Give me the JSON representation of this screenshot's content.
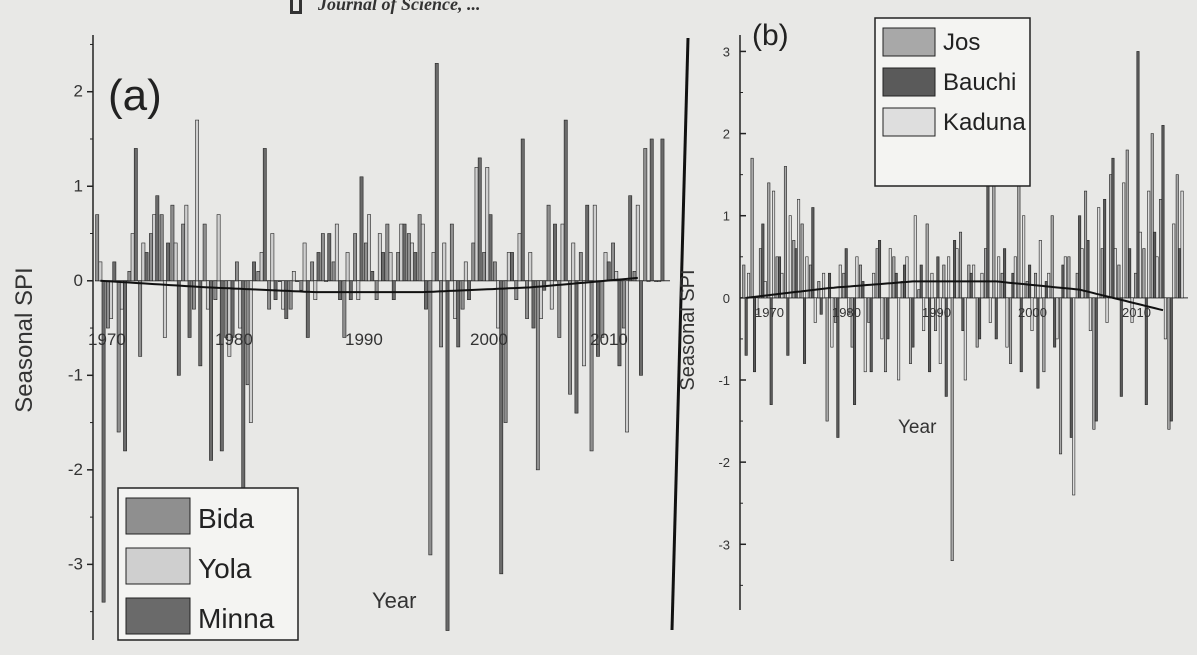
{
  "header": {
    "text": "Journal of Science, ..."
  },
  "chart_data": [
    {
      "type": "bar",
      "title": "",
      "panel_label": "(a)",
      "xlabel": "Year",
      "ylabel": "Seasonal SPI",
      "ylim": [
        -3.8,
        2.6
      ],
      "xlim": [
        1969.5,
        2023
      ],
      "yticks": [
        -3,
        -2,
        -1,
        0,
        1,
        2
      ],
      "xticks": [
        1970,
        1980,
        1990,
        2000,
        2010
      ],
      "xtick_labels": [
        "1970",
        "1980",
        "1990",
        "2000",
        "2010"
      ],
      "legend": {
        "position": "bottom-left",
        "entries": [
          "Bida",
          "Yola",
          "Minna"
        ]
      },
      "trend_line": {
        "x": [
          1970,
          1980,
          1990,
          2000,
          2010,
          2020
        ],
        "y": [
          0.0,
          -0.07,
          -0.12,
          -0.12,
          -0.07,
          0.03
        ]
      },
      "series": [
        {
          "name": "Bida",
          "color": "#8f8f8f",
          "x": [
            1970,
            1971,
            1972,
            1973,
            1974,
            1975,
            1976,
            1977,
            1978,
            1979,
            1980,
            1981,
            1982,
            1983,
            1984,
            1985,
            1986,
            1987,
            1988,
            1989,
            1990,
            1991,
            1992,
            1993,
            1994,
            1995,
            1996,
            1997,
            1998,
            1999,
            2000,
            2001,
            2002,
            2003,
            2004,
            2005,
            2006,
            2007,
            2008,
            2009,
            2010,
            2011,
            2012,
            2013,
            2014,
            2015,
            2016,
            2017,
            2018,
            2019,
            2020,
            2021,
            2022
          ],
          "values": [
            0.7,
            -0.5,
            -1.6,
            0.1,
            -0.8,
            0.5,
            0.7,
            0.8,
            0.6,
            -0.3,
            0.6,
            -0.2,
            -0.6,
            0.2,
            -1.1,
            0.1,
            -0.3,
            0.0,
            -0.3,
            -0.1,
            0.2,
            0.5,
            0.2,
            -0.6,
            0.5,
            0.4,
            -0.2,
            0.6,
            0.3,
            0.5,
            0.7,
            -2.9,
            -0.7,
            0.6,
            -0.3,
            0.4,
            0.3,
            0.2,
            -1.5,
            -0.2,
            -0.4,
            -2.0,
            0.8,
            -0.6,
            -1.2,
            0.3,
            -1.8,
            -0.6,
            0.4,
            -0.5,
            0.1,
            1.4,
            0.0
          ]
        },
        {
          "name": "Yola",
          "color": "#cfcfcf",
          "x": [
            1970,
            1971,
            1972,
            1973,
            1974,
            1975,
            1976,
            1977,
            1978,
            1979,
            1980,
            1981,
            1982,
            1983,
            1984,
            1985,
            1986,
            1987,
            1988,
            1989,
            1990,
            1991,
            1992,
            1993,
            1994,
            1995,
            1996,
            1997,
            1998,
            1999,
            2000,
            2001,
            2002,
            2003,
            2004,
            2005,
            2006,
            2007,
            2008,
            2009,
            2010,
            2011,
            2012,
            2013,
            2014,
            2015,
            2016,
            2017,
            2018,
            2019,
            2020,
            2021,
            2022
          ],
          "values": [
            0.2,
            -0.4,
            -0.3,
            0.5,
            0.4,
            0.7,
            -0.6,
            0.4,
            0.8,
            1.7,
            -0.3,
            0.7,
            -0.8,
            -0.5,
            -1.5,
            0.3,
            0.5,
            -0.3,
            0.1,
            0.4,
            -0.2,
            0.0,
            0.6,
            0.3,
            -0.2,
            0.7,
            0.5,
            0.3,
            0.6,
            0.4,
            0.6,
            0.3,
            0.4,
            -0.4,
            0.2,
            1.2,
            1.2,
            -0.5,
            0.3,
            0.5,
            0.3,
            -0.4,
            -0.3,
            0.6,
            0.4,
            -0.9,
            0.8,
            0.3,
            0.1,
            -1.6,
            0.8,
            0.0,
            0.0
          ]
        },
        {
          "name": "Minna",
          "color": "#6a6a6a",
          "x": [
            1970,
            1971,
            1972,
            1973,
            1974,
            1975,
            1976,
            1977,
            1978,
            1979,
            1980,
            1981,
            1982,
            1983,
            1984,
            1985,
            1986,
            1987,
            1988,
            1989,
            1990,
            1991,
            1992,
            1993,
            1994,
            1995,
            1996,
            1997,
            1998,
            1999,
            2000,
            2001,
            2002,
            2003,
            2004,
            2005,
            2006,
            2007,
            2008,
            2009,
            2010,
            2011,
            2012,
            2013,
            2014,
            2015,
            2016,
            2017,
            2018,
            2019,
            2020,
            2021,
            2022
          ],
          "values": [
            -3.4,
            0.2,
            -1.8,
            1.4,
            0.3,
            0.9,
            0.4,
            -1.0,
            -0.6,
            -0.9,
            -1.9,
            -1.8,
            -0.6,
            -3.5,
            0.2,
            1.4,
            -0.2,
            -0.4,
            0.0,
            -0.6,
            0.3,
            0.5,
            -0.2,
            -0.2,
            1.1,
            0.1,
            0.3,
            -0.2,
            0.6,
            0.3,
            -0.3,
            2.3,
            -3.7,
            -0.7,
            -0.2,
            1.3,
            0.7,
            -3.1,
            0.3,
            1.5,
            -0.5,
            -0.1,
            0.6,
            1.7,
            -1.4,
            0.8,
            -0.8,
            0.2,
            -0.9,
            0.9,
            -1.0,
            1.5,
            1.5
          ]
        }
      ]
    },
    {
      "type": "bar",
      "title": "",
      "panel_label": "(b)",
      "xlabel": "Year",
      "ylabel": "Seasonal SPI",
      "ylim": [
        -3.8,
        3.2
      ],
      "xlim": [
        1969.5,
        2023
      ],
      "yticks": [
        -3,
        -2,
        -1,
        0,
        1,
        2,
        3
      ],
      "xticks": [
        1970,
        1980,
        1990,
        2000,
        2010
      ],
      "xtick_labels": [
        "1970",
        "1980",
        "1990",
        "2000",
        "2010"
      ],
      "legend": {
        "position": "top-center",
        "entries": [
          "Jos",
          "Bauchi",
          "Kaduna"
        ]
      },
      "trend_line": {
        "x": [
          1970,
          1980,
          1990,
          2000,
          2010,
          2020
        ],
        "y": [
          0.0,
          0.12,
          0.2,
          0.2,
          0.1,
          -0.15
        ]
      },
      "series": [
        {
          "name": "Jos",
          "color": "#a8a8a8",
          "x": [
            1970,
            1971,
            1972,
            1973,
            1974,
            1975,
            1976,
            1977,
            1978,
            1979,
            1980,
            1981,
            1982,
            1983,
            1984,
            1985,
            1986,
            1987,
            1988,
            1989,
            1990,
            1991,
            1992,
            1993,
            1994,
            1995,
            1996,
            1997,
            1998,
            1999,
            2000,
            2001,
            2002,
            2003,
            2004,
            2005,
            2006,
            2007,
            2008,
            2009,
            2010,
            2011,
            2012,
            2013,
            2014,
            2015,
            2016,
            2017,
            2018,
            2019,
            2020,
            2021,
            2022
          ],
          "values": [
            0.4,
            1.7,
            0.6,
            1.4,
            0.5,
            1.6,
            0.7,
            0.9,
            0.4,
            0.2,
            -1.5,
            -0.3,
            0.3,
            -0.6,
            0.4,
            -0.3,
            0.6,
            -0.9,
            0.5,
            0.2,
            -0.8,
            0.1,
            0.9,
            -0.4,
            0.4,
            -3.2,
            0.8,
            0.4,
            -0.6,
            0.6,
            2.2,
            0.3,
            -0.8,
            1.9,
            0.2,
            0.3,
            -0.9,
            1.0,
            -1.9,
            0.5,
            0.3,
            1.3,
            -1.6,
            0.6,
            1.5,
            0.4,
            1.8,
            0.3,
            0.6,
            2.0,
            1.2,
            -1.6,
            1.5
          ]
        },
        {
          "name": "Bauchi",
          "color": "#5a5a5a",
          "x": [
            1970,
            1971,
            1972,
            1973,
            1974,
            1975,
            1976,
            1977,
            1978,
            1979,
            1980,
            1981,
            1982,
            1983,
            1984,
            1985,
            1986,
            1987,
            1988,
            1989,
            1990,
            1991,
            1992,
            1993,
            1994,
            1995,
            1996,
            1997,
            1998,
            1999,
            2000,
            2001,
            2002,
            2003,
            2004,
            2005,
            2006,
            2007,
            2008,
            2009,
            2010,
            2011,
            2012,
            2013,
            2014,
            2015,
            2016,
            2017,
            2018,
            2019,
            2020,
            2021,
            2022
          ],
          "values": [
            -0.7,
            -0.9,
            0.9,
            -1.3,
            0.5,
            -0.7,
            0.6,
            -0.8,
            1.1,
            -0.2,
            0.3,
            -1.7,
            0.6,
            -1.3,
            0.2,
            -0.9,
            0.7,
            -0.5,
            0.3,
            0.4,
            -0.6,
            0.4,
            -0.9,
            0.5,
            -1.2,
            0.7,
            -0.4,
            0.3,
            -0.5,
            1.6,
            -0.5,
            0.6,
            0.3,
            -0.9,
            0.4,
            -1.1,
            0.2,
            -0.6,
            0.4,
            -1.7,
            1.0,
            0.7,
            -1.5,
            1.2,
            1.7,
            -1.2,
            0.6,
            3.0,
            -1.3,
            0.8,
            2.1,
            -1.5,
            0.6
          ]
        },
        {
          "name": "Kaduna",
          "color": "#dedede",
          "x": [
            1970,
            1971,
            1972,
            1973,
            1974,
            1975,
            1976,
            1977,
            1978,
            1979,
            1980,
            1981,
            1982,
            1983,
            1984,
            1985,
            1986,
            1987,
            1988,
            1989,
            1990,
            1991,
            1992,
            1993,
            1994,
            1995,
            1996,
            1997,
            1998,
            1999,
            2000,
            2001,
            2002,
            2003,
            2004,
            2005,
            2006,
            2007,
            2008,
            2009,
            2010,
            2011,
            2012,
            2013,
            2014,
            2015,
            2016,
            2017,
            2018,
            2019,
            2020,
            2021,
            2022
          ],
          "values": [
            0.3,
            -0.2,
            0.2,
            1.3,
            0.3,
            1.0,
            1.2,
            0.5,
            -0.3,
            0.3,
            -0.6,
            0.4,
            -0.2,
            0.5,
            -0.9,
            0.3,
            -0.5,
            0.6,
            -1.0,
            0.5,
            1.0,
            -0.4,
            0.3,
            -0.8,
            0.5,
            0.6,
            -1.0,
            0.4,
            0.3,
            -0.3,
            0.5,
            -0.6,
            0.5,
            1.0,
            -0.4,
            0.7,
            0.3,
            -0.5,
            0.5,
            -2.4,
            0.6,
            -0.4,
            1.1,
            -0.3,
            0.6,
            1.4,
            -0.3,
            0.8,
            1.3,
            0.5,
            -0.5,
            0.9,
            1.3
          ]
        }
      ]
    }
  ]
}
